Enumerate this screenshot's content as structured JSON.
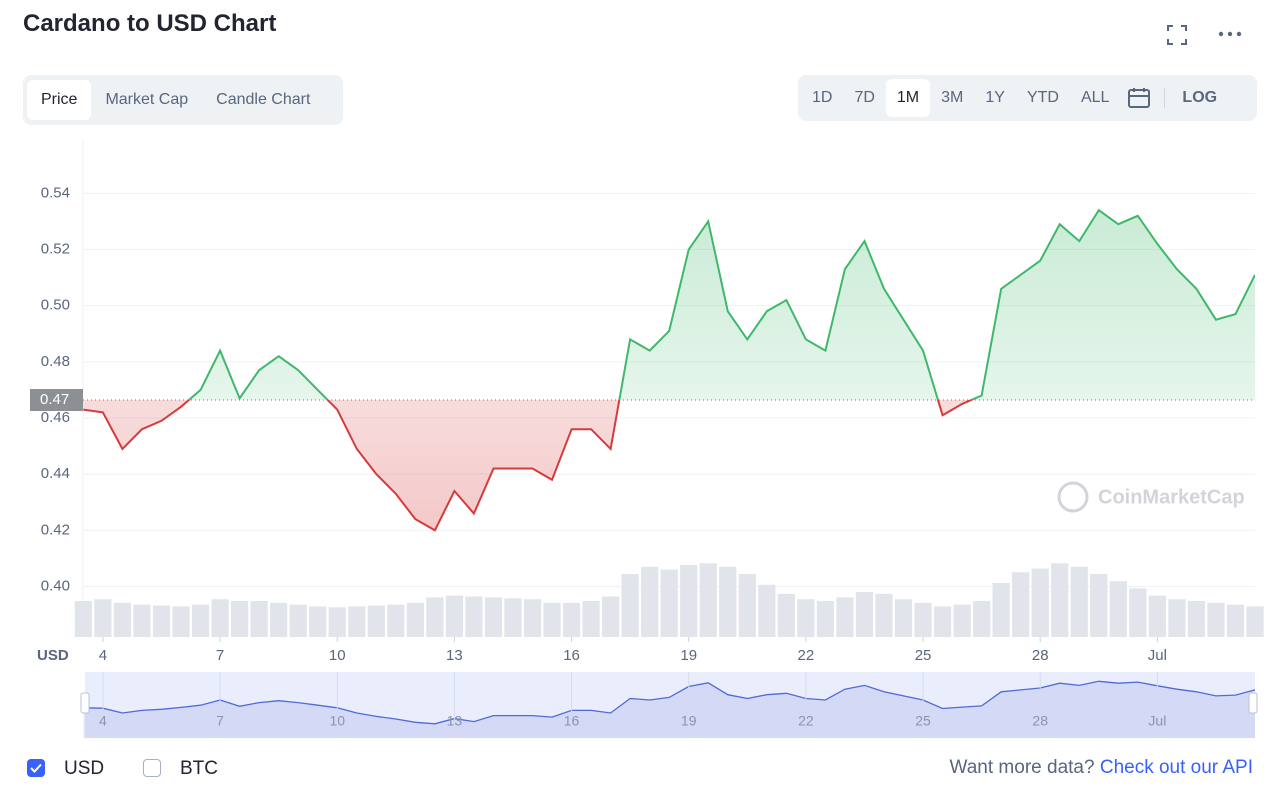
{
  "header": {
    "title": "Cardano to USD Chart"
  },
  "tabs": [
    "Price",
    "Market Cap",
    "Candle Chart"
  ],
  "active_tab": 0,
  "ranges": [
    "1D",
    "7D",
    "1M",
    "3M",
    "1Y",
    "YTD",
    "ALL"
  ],
  "active_range": 2,
  "log": "LOG",
  "chart_data": {
    "type": "line",
    "y_unit": "USD",
    "watermark": "CoinMarketCap",
    "x": [
      3.5,
      4,
      4.5,
      5,
      5.5,
      6,
      6.5,
      7,
      7.5,
      8,
      8.5,
      9,
      9.5,
      10,
      10.5,
      11,
      11.5,
      12,
      12.5,
      13,
      13.5,
      14,
      14.5,
      15,
      15.5,
      16,
      16.5,
      17,
      17.5,
      18,
      18.5,
      19,
      19.5,
      20,
      20.5,
      21,
      21.5,
      22,
      22.5,
      23,
      23.5,
      24,
      24.5,
      25,
      25.5,
      26,
      26.5,
      27,
      27.5,
      28,
      28.5,
      29,
      29.5,
      30,
      30.5,
      31,
      31.5,
      32,
      32.5,
      33,
      33.5
    ],
    "values": [
      0.463,
      0.462,
      0.449,
      0.456,
      0.459,
      0.464,
      0.47,
      0.484,
      0.467,
      0.477,
      0.482,
      0.477,
      0.47,
      0.463,
      0.449,
      0.44,
      0.433,
      0.424,
      0.42,
      0.434,
      0.426,
      0.442,
      0.442,
      0.442,
      0.438,
      0.456,
      0.456,
      0.449,
      0.488,
      0.484,
      0.491,
      0.52,
      0.53,
      0.498,
      0.488,
      0.498,
      0.502,
      0.488,
      0.484,
      0.513,
      0.523,
      0.506,
      0.495,
      0.484,
      0.461,
      0.465,
      0.468,
      0.506,
      0.511,
      0.516,
      0.529,
      0.523,
      0.534,
      0.529,
      0.532,
      0.522,
      0.513,
      0.506,
      0.495,
      0.497,
      0.511
    ],
    "volume": [
      40,
      42,
      38,
      36,
      35,
      34,
      36,
      42,
      40,
      40,
      38,
      36,
      34,
      33,
      34,
      35,
      36,
      38,
      44,
      46,
      45,
      44,
      43,
      42,
      38,
      38,
      40,
      45,
      70,
      78,
      75,
      80,
      82,
      78,
      70,
      58,
      48,
      42,
      40,
      44,
      50,
      48,
      42,
      38,
      34,
      36,
      40,
      60,
      72,
      76,
      82,
      78,
      70,
      62,
      54,
      46,
      42,
      40,
      38,
      36,
      34
    ],
    "vlim": [
      0,
      100
    ],
    "color_up": "#3fb86b",
    "color_down": "#d63b3b",
    "volume_color": "#e1e4ea",
    "reference": {
      "value": 0.4664,
      "label": "0.47"
    },
    "xlim": [
      3.49,
      33.5
    ],
    "xticks": [
      4,
      7,
      10,
      13,
      16,
      19,
      22,
      25,
      28,
      {
        "value": 31,
        "label": "Jul"
      }
    ],
    "ylim": [
      0.382,
      0.559
    ],
    "yticks": [
      {
        "value": 0.4,
        "label": "0.40"
      },
      0.42,
      0.44,
      0.46,
      0.48,
      {
        "value": 0.5,
        "label": "0.50"
      },
      0.52,
      0.54
    ],
    "grid": true
  },
  "footer": {
    "currencies": [
      {
        "label": "USD",
        "checked": true
      },
      {
        "label": "BTC",
        "checked": false
      }
    ],
    "prompt": "Want more data?",
    "link": "Check out our API"
  }
}
